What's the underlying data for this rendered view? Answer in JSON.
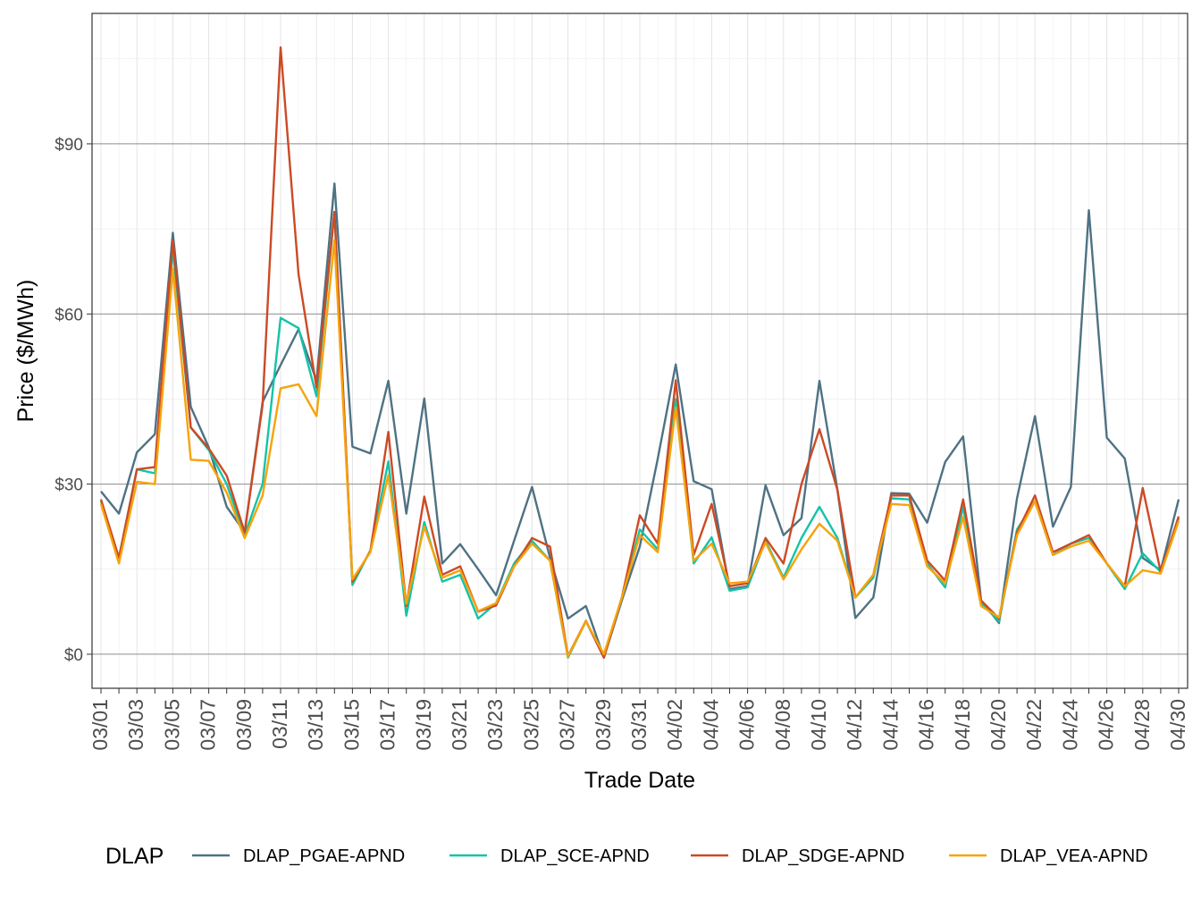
{
  "chart_data": {
    "type": "line",
    "xlabel": "Trade Date",
    "ylabel": "Price ($/MWh)",
    "ylim": [
      -6,
      113
    ],
    "y_ticks": [
      0,
      30,
      60,
      90
    ],
    "y_tick_labels": [
      "$0",
      "$30",
      "$60",
      "$90"
    ],
    "grid": true,
    "legend_position": "bottom",
    "legend_title": "DLAP",
    "x_tick_labels": [
      "03/01",
      "03/03",
      "03/05",
      "03/07",
      "03/09",
      "03/11",
      "03/13",
      "03/15",
      "03/17",
      "03/19",
      "03/21",
      "03/23",
      "03/25",
      "03/27",
      "03/29",
      "03/31",
      "04/02",
      "04/04",
      "04/06",
      "04/08",
      "04/10",
      "04/12",
      "04/14",
      "04/16",
      "04/18",
      "04/20",
      "04/22",
      "04/24",
      "04/26",
      "04/28",
      "04/30"
    ],
    "x": [
      "03/01",
      "03/02",
      "03/03",
      "03/04",
      "03/05",
      "03/06",
      "03/07",
      "03/08",
      "03/09",
      "03/10",
      "03/11",
      "03/12",
      "03/13",
      "03/14",
      "03/15",
      "03/16",
      "03/17",
      "03/18",
      "03/19",
      "03/20",
      "03/21",
      "03/22",
      "03/23",
      "03/24",
      "03/25",
      "03/26",
      "03/27",
      "03/28",
      "03/29",
      "03/30",
      "03/31",
      "04/01",
      "04/02",
      "04/03",
      "04/04",
      "04/05",
      "04/06",
      "04/07",
      "04/08",
      "04/09",
      "04/10",
      "04/11",
      "04/12",
      "04/13",
      "04/14",
      "04/15",
      "04/16",
      "04/17",
      "04/18",
      "04/19",
      "04/20",
      "04/21",
      "04/22",
      "04/23",
      "04/24",
      "04/25",
      "04/26",
      "04/27",
      "04/28",
      "04/29",
      "04/30"
    ],
    "series": [
      {
        "name": "DLAP_PGAE-APND",
        "color": "#4e7283",
        "values": [
          28.7,
          24.8,
          35.6,
          38.8,
          74.3,
          43.6,
          36.5,
          26,
          21.5,
          44.5,
          51,
          57.3,
          48.2,
          83,
          36.6,
          35.4,
          48.2,
          24.8,
          45.1,
          16,
          19.4,
          15,
          10.4,
          20,
          29.5,
          17,
          6.3,
          8.5,
          -0.6,
          9.5,
          19,
          34.5,
          51.1,
          30.5,
          29.1,
          11.5,
          12,
          29.8,
          21,
          24,
          48.2,
          29,
          6.4,
          10,
          28.4,
          28.3,
          23.2,
          33.9,
          38.4,
          9.5,
          5.5,
          27.5,
          42,
          22.5,
          29.5,
          78.3,
          38.2,
          34.5,
          17,
          14.8,
          27.3
        ]
      },
      {
        "name": "DLAP_SCE-APND",
        "color": "#14c3a8",
        "values": [
          27,
          17,
          32.6,
          31.9,
          71.5,
          40,
          36,
          30,
          21,
          30,
          59.3,
          57.5,
          45.5,
          78,
          12.2,
          18.3,
          34,
          6.8,
          23.3,
          12.8,
          14,
          6.3,
          9,
          16,
          20,
          16.5,
          -0.6,
          5.8,
          -0.5,
          10,
          22,
          18.5,
          45,
          16,
          20.6,
          11.2,
          11.8,
          20,
          13.5,
          20.5,
          26,
          20.5,
          10,
          13.5,
          27.5,
          27.3,
          16,
          11.8,
          26,
          9,
          5.8,
          22,
          27,
          17.5,
          19.5,
          20.5,
          16,
          11.5,
          17.8,
          14.5,
          24
        ]
      },
      {
        "name": "DLAP_SDGE-APND",
        "color": "#cc4a24",
        "values": [
          27.3,
          17,
          32.6,
          33,
          73,
          40,
          36.3,
          31.5,
          21.5,
          44,
          107,
          67,
          47,
          78,
          12.8,
          18.2,
          39.2,
          8.5,
          27.8,
          14,
          15.5,
          7.5,
          8.6,
          15.5,
          20.5,
          19,
          -0.3,
          5.9,
          -0.6,
          10,
          24.5,
          19.5,
          48.3,
          17.5,
          26.5,
          12,
          12.5,
          20.5,
          16,
          30,
          39.7,
          29,
          10,
          14,
          28,
          28,
          16.5,
          13,
          27.3,
          9.5,
          6.3,
          21.5,
          28,
          18,
          19.5,
          21,
          16,
          12,
          29.3,
          14.5,
          24.3
        ]
      },
      {
        "name": "DLAP_VEA-APND",
        "color": "#f7a30a",
        "values": [
          26.5,
          16,
          30.4,
          30,
          68,
          34.3,
          34.1,
          28.5,
          20.5,
          28,
          46.9,
          47.6,
          42,
          73,
          13.2,
          18,
          31.6,
          8.9,
          22.5,
          13.5,
          14.8,
          7.6,
          9,
          15.5,
          19.5,
          16.5,
          -0.4,
          5.8,
          0,
          10,
          21,
          18,
          43.5,
          16.5,
          19.5,
          12.5,
          12.8,
          19.7,
          13.2,
          18.5,
          23,
          20,
          10,
          14,
          26.5,
          26.3,
          15.5,
          12.5,
          24.2,
          8.5,
          6.5,
          21,
          27,
          17.5,
          19,
          20,
          16,
          12,
          14.8,
          14.2,
          23.5
        ]
      }
    ]
  }
}
